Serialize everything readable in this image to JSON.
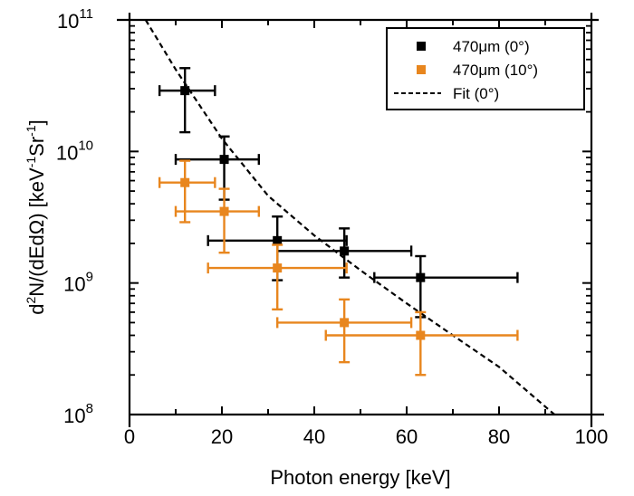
{
  "chart_data": {
    "type": "scatter",
    "title": "",
    "xlabel": "Photon energy [keV]",
    "ylabel_parts": {
      "prefix": "d",
      "sup1": "2",
      "mid": "N/(dEdΩ) [keV",
      "sup2": "-1",
      "mid2": "Sr",
      "sup3": "-1",
      "suffix": "]"
    },
    "xlim": [
      0,
      100
    ],
    "ylim": [
      100000000.0,
      100000000000.0
    ],
    "yscale": "log",
    "xticks": [
      0,
      20,
      40,
      60,
      80,
      100
    ],
    "xtick_labels": [
      "0",
      "20",
      "40",
      "60",
      "80",
      "100"
    ],
    "yticks": [
      {
        "base": "10",
        "exp": "11",
        "value": 100000000000.0
      },
      {
        "base": "10",
        "exp": "10",
        "value": 10000000000.0
      },
      {
        "base": "10",
        "exp": "9",
        "value": 1000000000.0
      },
      {
        "base": "10",
        "exp": "8",
        "value": 100000000.0
      }
    ],
    "grid": false,
    "legend_position": "top-right",
    "series": [
      {
        "name": "470μm (0°)",
        "color": "#000000",
        "marker": "square",
        "points": [
          {
            "x": 12,
            "y": 29000000000.0,
            "xerr": [
              6.5,
              18.5
            ],
            "yerr": [
              14000000000.0,
              43000000000.0
            ]
          },
          {
            "x": 20.5,
            "y": 8700000000.0,
            "xerr": [
              10,
              28
            ],
            "yerr": [
              4300000000.0,
              13000000000.0
            ]
          },
          {
            "x": 32,
            "y": 2100000000.0,
            "xerr": [
              17,
              47
            ],
            "yerr": [
              1050000000.0,
              3200000000.0
            ]
          },
          {
            "x": 46.5,
            "y": 1750000000.0,
            "xerr": [
              32,
              61
            ],
            "yerr": [
              1100000000.0,
              2600000000.0
            ]
          },
          {
            "x": 63,
            "y": 1100000000.0,
            "xerr": [
              53,
              84
            ],
            "yerr": [
              550000000.0,
              1600000000.0
            ]
          }
        ]
      },
      {
        "name": "470μm (10°)",
        "color": "#E8861E",
        "marker": "square",
        "points": [
          {
            "x": 12,
            "y": 5800000000.0,
            "xerr": [
              6.5,
              18.5
            ],
            "yerr": [
              2900000000.0,
              8500000000.0
            ]
          },
          {
            "x": 20.5,
            "y": 3500000000.0,
            "xerr": [
              10,
              28
            ],
            "yerr": [
              1700000000.0,
              5200000000.0
            ]
          },
          {
            "x": 32,
            "y": 1300000000.0,
            "xerr": [
              17,
              47
            ],
            "yerr": [
              630000000.0,
              1950000000.0
            ]
          },
          {
            "x": 46.5,
            "y": 500000000.0,
            "xerr": [
              32,
              61
            ],
            "yerr": [
              250000000.0,
              750000000.0
            ]
          },
          {
            "x": 63,
            "y": 400000000.0,
            "xerr": [
              42.5,
              84
            ],
            "yerr": [
              200000000.0,
              600000000.0
            ]
          }
        ]
      }
    ],
    "fit": {
      "name": "Fit (0°)",
      "color": "#000000",
      "style": "dashed",
      "points": [
        {
          "x": 3.5,
          "y": 100000000000.0
        },
        {
          "x": 10,
          "y": 42000000000.0
        },
        {
          "x": 20,
          "y": 12500000000.0
        },
        {
          "x": 30,
          "y": 4600000000.0
        },
        {
          "x": 40,
          "y": 2300000000.0
        },
        {
          "x": 50,
          "y": 1250000000.0
        },
        {
          "x": 60,
          "y": 700000000.0
        },
        {
          "x": 70,
          "y": 400000000.0
        },
        {
          "x": 80,
          "y": 230000000.0
        },
        {
          "x": 92,
          "y": 100000000.0
        }
      ]
    }
  }
}
